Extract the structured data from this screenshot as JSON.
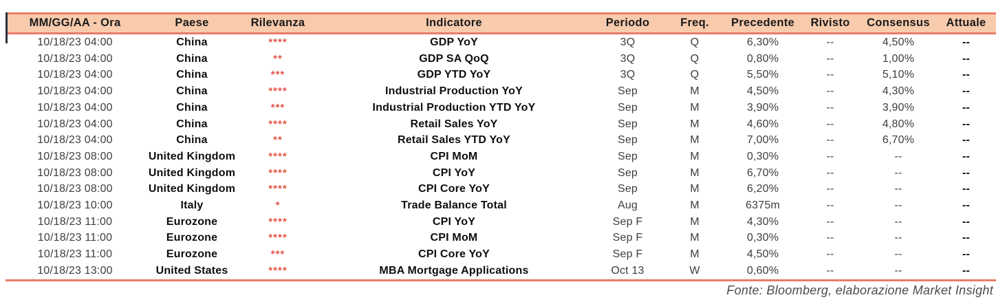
{
  "colors": {
    "header_bg": "#F8CBAD",
    "rule": "#E97C68",
    "star": "#E4554A",
    "text_dark": "#1A1A1A",
    "text_regular": "#3D3D3D",
    "footer_gray": "#4D4D4D"
  },
  "table": {
    "columns": [
      {
        "key": "datetime",
        "label": "MM/GG/AA - Ora"
      },
      {
        "key": "country",
        "label": "Paese"
      },
      {
        "key": "relevance",
        "label": "Rilevanza"
      },
      {
        "key": "indicator",
        "label": "Indicatore"
      },
      {
        "key": "period",
        "label": "Periodo"
      },
      {
        "key": "freq",
        "label": "Freq."
      },
      {
        "key": "previous",
        "label": "Precedente"
      },
      {
        "key": "revised",
        "label": "Rivisto"
      },
      {
        "key": "consensus",
        "label": "Consensus"
      },
      {
        "key": "actual",
        "label": "Attuale"
      }
    ],
    "rows": [
      {
        "datetime": "10/18/23 04:00",
        "country": "China",
        "relevance": "****",
        "indicator": "GDP YoY",
        "period": "3Q",
        "freq": "Q",
        "previous": "6,30%",
        "revised": "--",
        "consensus": "4,50%",
        "actual": "--"
      },
      {
        "datetime": "10/18/23 04:00",
        "country": "China",
        "relevance": "**",
        "indicator": "GDP SA QoQ",
        "period": "3Q",
        "freq": "Q",
        "previous": "0,80%",
        "revised": "--",
        "consensus": "1,00%",
        "actual": "--"
      },
      {
        "datetime": "10/18/23 04:00",
        "country": "China",
        "relevance": "***",
        "indicator": "GDP YTD YoY",
        "period": "3Q",
        "freq": "Q",
        "previous": "5,50%",
        "revised": "--",
        "consensus": "5,10%",
        "actual": "--"
      },
      {
        "datetime": "10/18/23 04:00",
        "country": "China",
        "relevance": "****",
        "indicator": "Industrial Production YoY",
        "period": "Sep",
        "freq": "M",
        "previous": "4,50%",
        "revised": "--",
        "consensus": "4,30%",
        "actual": "--"
      },
      {
        "datetime": "10/18/23 04:00",
        "country": "China",
        "relevance": "***",
        "indicator": "Industrial Production YTD YoY",
        "period": "Sep",
        "freq": "M",
        "previous": "3,90%",
        "revised": "--",
        "consensus": "3,90%",
        "actual": "--"
      },
      {
        "datetime": "10/18/23 04:00",
        "country": "China",
        "relevance": "****",
        "indicator": "Retail Sales YoY",
        "period": "Sep",
        "freq": "M",
        "previous": "4,60%",
        "revised": "--",
        "consensus": "4,80%",
        "actual": "--"
      },
      {
        "datetime": "10/18/23 04:00",
        "country": "China",
        "relevance": "**",
        "indicator": "Retail Sales YTD YoY",
        "period": "Sep",
        "freq": "M",
        "previous": "7,00%",
        "revised": "--",
        "consensus": "6,70%",
        "actual": "--"
      },
      {
        "datetime": "10/18/23 08:00",
        "country": "United Kingdom",
        "relevance": "****",
        "indicator": "CPI MoM",
        "period": "Sep",
        "freq": "M",
        "previous": "0,30%",
        "revised": "--",
        "consensus": "--",
        "actual": "--"
      },
      {
        "datetime": "10/18/23 08:00",
        "country": "United Kingdom",
        "relevance": "****",
        "indicator": "CPI YoY",
        "period": "Sep",
        "freq": "M",
        "previous": "6,70%",
        "revised": "--",
        "consensus": "--",
        "actual": "--"
      },
      {
        "datetime": "10/18/23 08:00",
        "country": "United Kingdom",
        "relevance": "****",
        "indicator": "CPI Core YoY",
        "period": "Sep",
        "freq": "M",
        "previous": "6,20%",
        "revised": "--",
        "consensus": "--",
        "actual": "--"
      },
      {
        "datetime": "10/18/23 10:00",
        "country": "Italy",
        "relevance": "*",
        "indicator": "Trade Balance Total",
        "period": "Aug",
        "freq": "M",
        "previous": "6375m",
        "revised": "--",
        "consensus": "--",
        "actual": "--"
      },
      {
        "datetime": "10/18/23 11:00",
        "country": "Eurozone",
        "relevance": "****",
        "indicator": "CPI YoY",
        "period": "Sep F",
        "freq": "M",
        "previous": "4,30%",
        "revised": "--",
        "consensus": "--",
        "actual": "--"
      },
      {
        "datetime": "10/18/23 11:00",
        "country": "Eurozone",
        "relevance": "****",
        "indicator": "CPI MoM",
        "period": "Sep F",
        "freq": "M",
        "previous": "0,30%",
        "revised": "--",
        "consensus": "--",
        "actual": "--"
      },
      {
        "datetime": "10/18/23 11:00",
        "country": "Eurozone",
        "relevance": "***",
        "indicator": "CPI Core YoY",
        "period": "Sep F",
        "freq": "M",
        "previous": "4,50%",
        "revised": "--",
        "consensus": "--",
        "actual": "--"
      },
      {
        "datetime": "10/18/23 13:00",
        "country": "United States",
        "relevance": "****",
        "indicator": "MBA Mortgage Applications",
        "period": "Oct 13",
        "freq": "W",
        "previous": "0,60%",
        "revised": "--",
        "consensus": "--",
        "actual": "--"
      }
    ]
  },
  "footer": {
    "source": "Fonte: Bloomberg, elaborazione Market Insight"
  }
}
